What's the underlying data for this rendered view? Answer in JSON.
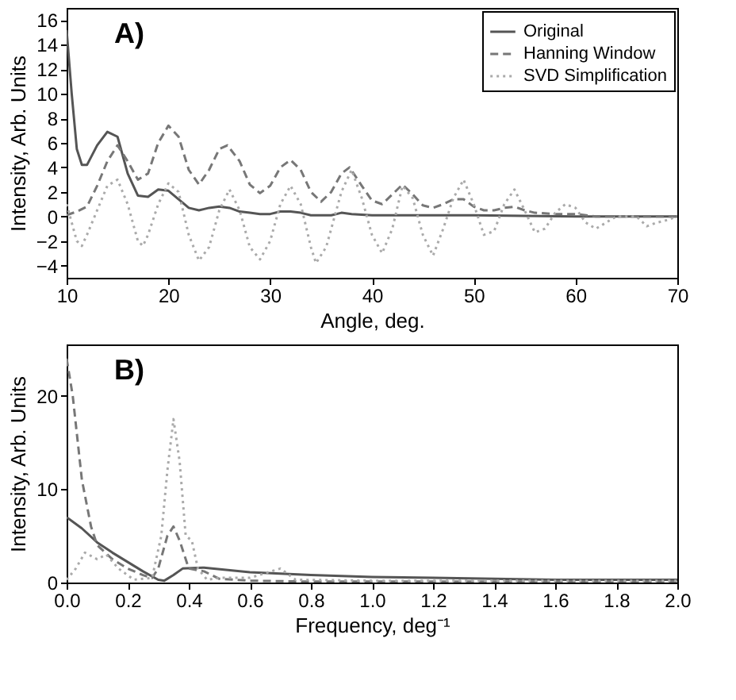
{
  "chart_data": [
    {
      "type": "line",
      "xlabel": "Angle, deg.",
      "ylabel": "Intensity, Arb. Units",
      "annotations": [
        "A)"
      ],
      "xlim": [
        10,
        70
      ],
      "ylim": [
        -5,
        17
      ],
      "xticks": [
        10,
        20,
        30,
        40,
        50,
        60,
        70
      ],
      "yticks": [
        -4,
        -2,
        0,
        2,
        4,
        6,
        8,
        10,
        12,
        14,
        16
      ],
      "grid": false,
      "legend": "top right",
      "marker": "none",
      "series": [
        {
          "name": "Original",
          "color": "#555555",
          "line_style": "solid",
          "x": [
            10,
            10.5,
            11,
            11.5,
            12,
            13,
            14,
            15,
            16,
            17,
            18,
            19,
            20,
            21,
            22,
            23,
            24,
            25,
            26,
            27,
            28,
            29,
            30,
            31,
            32,
            33,
            34,
            36,
            37,
            38,
            40,
            45,
            50,
            60,
            70
          ],
          "values": [
            15.2,
            10,
            5.5,
            4.2,
            4.2,
            5.8,
            6.9,
            6.5,
            3.5,
            1.7,
            1.6,
            2.2,
            2.1,
            1.4,
            0.7,
            0.5,
            0.7,
            0.8,
            0.7,
            0.4,
            0.3,
            0.2,
            0.2,
            0.4,
            0.4,
            0.3,
            0.1,
            0.1,
            0.3,
            0.2,
            0.1,
            0.1,
            0.1,
            0,
            0
          ]
        },
        {
          "name": "Hanning Window",
          "color": "#777777",
          "line_style": "dashed",
          "x": [
            10,
            11,
            12,
            13,
            14,
            15,
            16,
            17,
            18,
            19,
            20,
            21,
            22,
            23,
            24,
            25,
            25.8,
            27,
            28,
            29,
            30,
            31,
            32,
            33,
            34,
            35,
            36,
            37,
            37.8,
            39,
            40,
            41,
            42,
            43,
            44,
            45,
            46,
            47,
            48,
            49,
            50,
            51,
            52,
            53,
            54,
            55,
            56,
            58,
            60,
            62,
            65,
            70
          ],
          "values": [
            0.1,
            0.4,
            0.8,
            2.5,
            4.5,
            5.8,
            4.5,
            3.0,
            3.5,
            6.0,
            7.4,
            6.5,
            3.8,
            2.6,
            3.8,
            5.5,
            5.8,
            4.5,
            2.6,
            1.9,
            2.5,
            4.0,
            4.6,
            3.8,
            2.0,
            1.2,
            2.0,
            3.5,
            4.0,
            2.5,
            1.3,
            1.0,
            1.8,
            2.6,
            1.8,
            0.9,
            0.7,
            1.0,
            1.4,
            1.4,
            0.8,
            0.5,
            0.5,
            0.7,
            0.8,
            0.5,
            0.3,
            0.2,
            0.2,
            0,
            0,
            0
          ]
        },
        {
          "name": "SVD Simplification",
          "color": "#aaaaaa",
          "line_style": "dotted",
          "x": [
            10,
            10.5,
            11,
            11.5,
            12,
            13,
            14,
            15,
            16,
            17,
            17.5,
            18,
            19,
            20,
            21,
            22,
            23,
            24,
            25,
            26,
            27,
            28,
            29,
            30,
            31,
            32,
            33,
            34,
            34.5,
            35.5,
            37,
            38,
            39,
            40,
            41,
            42,
            43,
            44,
            45,
            46,
            47,
            48,
            49,
            50,
            51,
            52,
            53,
            54,
            55,
            56,
            57,
            58,
            59,
            60,
            61,
            62,
            63,
            64,
            66,
            67,
            68,
            69,
            70
          ],
          "values": [
            1.0,
            -0.5,
            -2.0,
            -2.4,
            -1.5,
            0.5,
            2.5,
            3.0,
            1.0,
            -2.0,
            -2.4,
            -1.5,
            1.0,
            2.7,
            2.0,
            -1.5,
            -3.6,
            -2.5,
            0.5,
            2.2,
            0.5,
            -2.5,
            -3.5,
            -2.0,
            1.0,
            2.5,
            1.0,
            -2.5,
            -3.8,
            -2.5,
            2.0,
            3.8,
            1.5,
            -1.5,
            -3.0,
            -1.0,
            2.5,
            1.5,
            -1.5,
            -3.2,
            -1.0,
            1.5,
            3.0,
            1.0,
            -1.5,
            -1.2,
            1.0,
            2.2,
            0.5,
            -1.3,
            -1.0,
            0.3,
            1.0,
            0.7,
            -0.5,
            -1.0,
            -0.5,
            0.0,
            0.0,
            -0.8,
            -0.5,
            -0.3,
            0.0
          ]
        }
      ]
    },
    {
      "type": "line",
      "xlabel": "Frequency, deg⁻¹",
      "ylabel": "Intensity, Arb. Units",
      "annotations": [
        "B)"
      ],
      "xlim": [
        0,
        2
      ],
      "ylim": [
        0,
        25.5
      ],
      "xticks": [
        {
          "value": 0,
          "label": "0.0"
        },
        0.2,
        0.4,
        0.6,
        0.8,
        {
          "value": 1,
          "label": "1.0"
        },
        1.2,
        1.4,
        1.6,
        1.8,
        {
          "value": 2,
          "label": "2.0"
        }
      ],
      "yticks": [
        0,
        10,
        20
      ],
      "grid": false,
      "marker": "none",
      "series": [
        {
          "color": "#555555",
          "line_style": "solid",
          "x": [
            0,
            0.05,
            0.1,
            0.15,
            0.2,
            0.25,
            0.3,
            0.32,
            0.35,
            0.38,
            0.45,
            0.6,
            0.8,
            1.0,
            1.2,
            1.4,
            1.6,
            1.8,
            2.0
          ],
          "values": [
            7.0,
            5.8,
            4.3,
            3.2,
            2.2,
            1.2,
            0.3,
            0.2,
            0.8,
            1.5,
            1.6,
            1.1,
            0.8,
            0.6,
            0.5,
            0.4,
            0.3,
            0.3,
            0.3
          ]
        },
        {
          "color": "#777777",
          "line_style": "dashed",
          "x": [
            0,
            0.02,
            0.05,
            0.08,
            0.1,
            0.15,
            0.2,
            0.25,
            0.28,
            0.3,
            0.33,
            0.35,
            0.37,
            0.4,
            0.45,
            0.5,
            0.6,
            0.8,
            1.0,
            1.5,
            2.0
          ],
          "values": [
            24,
            20,
            11,
            6,
            4,
            2.5,
            1.5,
            0.8,
            0.5,
            1.5,
            5,
            6,
            4.5,
            1.5,
            1.2,
            0.4,
            0.2,
            0.1,
            0.1,
            0.1,
            0.1
          ]
        },
        {
          "color": "#aaaaaa",
          "line_style": "dotted",
          "x": [
            0,
            0.03,
            0.06,
            0.1,
            0.13,
            0.17,
            0.22,
            0.28,
            0.31,
            0.33,
            0.35,
            0.37,
            0.39,
            0.41,
            0.43,
            0.46,
            0.5,
            0.6,
            0.7,
            0.75,
            1.0,
            1.5,
            2.0
          ],
          "values": [
            0.3,
            1.5,
            3.2,
            2.5,
            3.0,
            1.5,
            0.3,
            0.5,
            5,
            12,
            17.5,
            13,
            5,
            4.5,
            1.5,
            0.3,
            0.5,
            0.5,
            1.5,
            0.3,
            0.2,
            0.2,
            0.2
          ]
        }
      ]
    }
  ]
}
